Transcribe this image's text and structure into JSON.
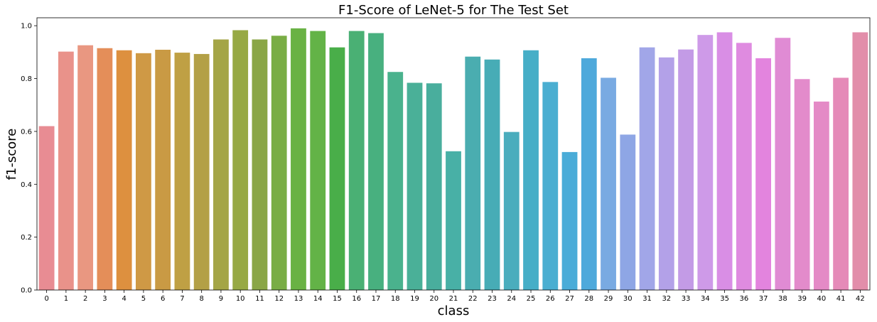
{
  "chart_data": {
    "type": "bar",
    "title": "F1-Score of LeNet-5 for The Test Set",
    "xlabel": "class",
    "ylabel": "f1-score",
    "ylim": [
      0,
      1.03
    ],
    "yticks": [
      "0.0",
      "0.2",
      "0.4",
      "0.6",
      "0.8",
      "1.0"
    ],
    "grid": false,
    "categories": [
      "0",
      "1",
      "2",
      "3",
      "4",
      "5",
      "6",
      "7",
      "8",
      "9",
      "10",
      "11",
      "12",
      "13",
      "14",
      "15",
      "16",
      "17",
      "18",
      "19",
      "20",
      "21",
      "22",
      "23",
      "24",
      "25",
      "26",
      "27",
      "28",
      "29",
      "30",
      "31",
      "32",
      "33",
      "34",
      "35",
      "36",
      "37",
      "38",
      "39",
      "40",
      "41",
      "42"
    ],
    "values": [
      0.62,
      0.902,
      0.926,
      0.915,
      0.907,
      0.896,
      0.909,
      0.898,
      0.893,
      0.948,
      0.983,
      0.948,
      0.962,
      0.99,
      0.98,
      0.918,
      0.98,
      0.972,
      0.825,
      0.784,
      0.782,
      0.525,
      0.883,
      0.872,
      0.598,
      0.907,
      0.787,
      0.522,
      0.877,
      0.803,
      0.588,
      0.918,
      0.88,
      0.91,
      0.965,
      0.975,
      0.935,
      0.877,
      0.954,
      0.798,
      0.713,
      0.803,
      0.975
    ],
    "colors": [
      "#e88c93",
      "#e9928a",
      "#e99781",
      "#e48e59",
      "#dd903f",
      "#cf9945",
      "#c99a44",
      "#bfa044",
      "#b3a046",
      "#a4a546",
      "#97a944",
      "#8aa646",
      "#79ad45",
      "#69b244",
      "#63b347",
      "#49ae49",
      "#4ab074",
      "#48b07f",
      "#4ab28d",
      "#4ab098",
      "#49ae9d",
      "#48b0a6",
      "#4aadb0",
      "#47acb6",
      "#4aadbd",
      "#46aec7",
      "#4aaed1",
      "#4aacd8",
      "#4ea9db",
      "#79aae2",
      "#8ea6e5",
      "#a1a6e8",
      "#b3a1e8",
      "#c39be6",
      "#ce9ae8",
      "#d98ee5",
      "#df8be0",
      "#e384de",
      "#e08bd4",
      "#e38bcb",
      "#e48ac6",
      "#e58ab8",
      "#e28eaa"
    ]
  }
}
